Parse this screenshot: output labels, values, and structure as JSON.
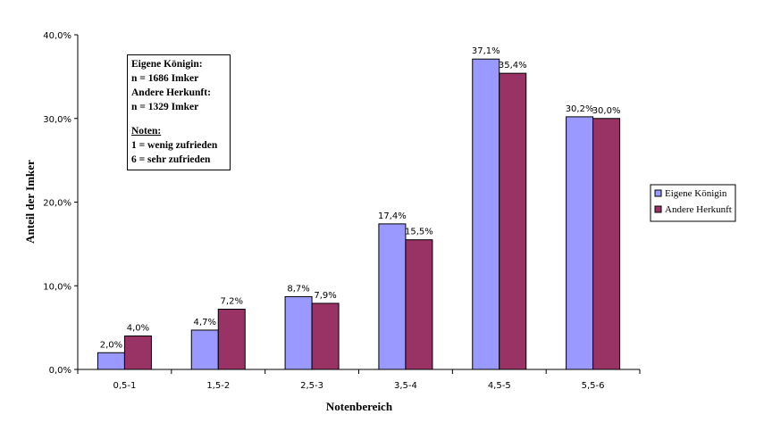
{
  "chart_data": {
    "type": "bar",
    "title": "",
    "xlabel": "Notenbereich",
    "ylabel": "Anteil der Imker",
    "ylim": [
      0,
      40
    ],
    "yticks": [
      "0,0%",
      "10,0%",
      "20,0%",
      "30,0%",
      "40,0%"
    ],
    "categories": [
      "0,5-1",
      "1,5-2",
      "2,5-3",
      "3,5-4",
      "4,5-5",
      "5,5-6"
    ],
    "series": [
      {
        "name": "Eigene Königin",
        "color": "#9999ff",
        "values": [
          2.0,
          4.7,
          8.7,
          17.4,
          37.1,
          30.2
        ],
        "labels": [
          "2,0%",
          "4,7%",
          "8,7%",
          "17,4%",
          "37,1%",
          "30,2%"
        ]
      },
      {
        "name": "Andere Herkunft",
        "color": "#993366",
        "values": [
          4.0,
          7.2,
          7.9,
          15.5,
          35.4,
          30.0
        ],
        "labels": [
          "4,0%",
          "7,2%",
          "7,9%",
          "15,5%",
          "35,4%",
          "30,0%"
        ]
      }
    ],
    "grid": false,
    "legend": "right"
  },
  "annotation": {
    "line1": "Eigene Königin:",
    "line2": "n = 1686 Imker",
    "line3": "Andere Herkunft:",
    "line4": "n = 1329 Imker",
    "line5": "Noten:",
    "line6": "1 = wenig zufrieden",
    "line7": "6 = sehr zufrieden"
  }
}
